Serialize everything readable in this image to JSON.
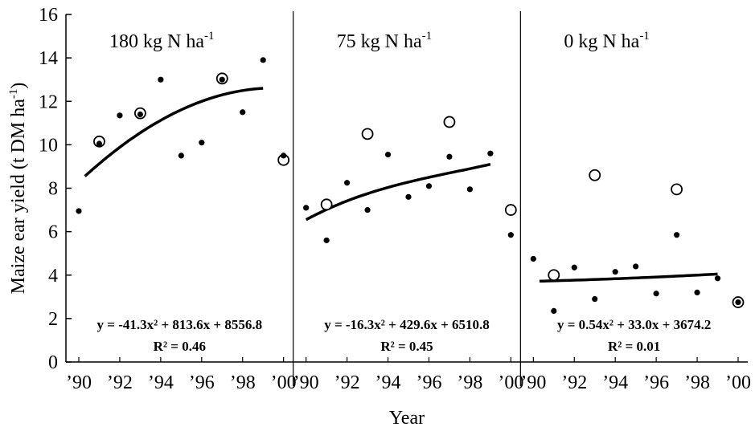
{
  "chart_data": {
    "type": "scatter",
    "ylabel": "Maize ear yield (t DM ha-1)",
    "xlabel": "Year",
    "ylim": [
      0,
      16
    ],
    "yticks": [
      "0",
      "2",
      "4",
      "6",
      "8",
      "10",
      "12",
      "14",
      "16"
    ],
    "xticks": [
      "’90",
      "’92",
      "’94",
      "’96",
      "’98",
      "’00"
    ],
    "xlim": [
      1990,
      2000
    ],
    "grid": false,
    "legend": "none",
    "marker_colors": {
      "filled": "#000000",
      "open_fill": "#ffffff"
    },
    "panels": [
      {
        "title_main": "180 kg N ha",
        "title_sup": "-1",
        "equation": "y = -41.3x² + 813.6x + 8556.8",
        "r2": "R² = 0.46",
        "filled": [
          [
            1990,
            6.95
          ],
          [
            1991,
            10.05
          ],
          [
            1992,
            11.35
          ],
          [
            1993,
            11.4
          ],
          [
            1994,
            13.0
          ],
          [
            1995,
            9.5
          ],
          [
            1996,
            10.1
          ],
          [
            1997,
            13.0
          ],
          [
            1998,
            11.5
          ],
          [
            1999,
            13.9
          ],
          [
            2000,
            9.5
          ]
        ],
        "open": [
          [
            1991,
            10.15
          ],
          [
            1993,
            11.45
          ],
          [
            1997,
            13.05
          ],
          [
            2000,
            9.3
          ]
        ],
        "fit": [
          [
            1990.3,
            8.55
          ],
          [
            1993,
            10.55
          ],
          [
            1996,
            12.0
          ],
          [
            1999,
            12.6
          ]
        ]
      },
      {
        "title_main": "75 kg N ha",
        "title_sup": "-1",
        "equation": "y = -16.3x² + 429.6x + 6510.8",
        "r2": "R² = 0.45",
        "filled": [
          [
            1990,
            7.1
          ],
          [
            1991,
            5.6
          ],
          [
            1992,
            8.25
          ],
          [
            1993,
            7.0
          ],
          [
            1994,
            9.55
          ],
          [
            1995,
            7.6
          ],
          [
            1996,
            8.1
          ],
          [
            1997,
            9.45
          ],
          [
            1998,
            7.95
          ],
          [
            1999,
            9.6
          ],
          [
            2000,
            5.85
          ]
        ],
        "open": [
          [
            1991,
            7.25
          ],
          [
            1993,
            10.5
          ],
          [
            1997,
            11.05
          ],
          [
            2000,
            7.0
          ]
        ],
        "fit": [
          [
            1990,
            6.55
          ],
          [
            1993,
            7.75
          ],
          [
            1996,
            8.5
          ],
          [
            1999,
            9.1
          ]
        ]
      },
      {
        "title_main": "0 kg N ha",
        "title_sup": "-1",
        "equation": "y = 0.54x² + 33.0x + 3674.2",
        "r2": "R² = 0.01",
        "filled": [
          [
            1990,
            4.75
          ],
          [
            1991,
            2.35
          ],
          [
            1992,
            4.35
          ],
          [
            1993,
            2.9
          ],
          [
            1994,
            4.15
          ],
          [
            1995,
            4.4
          ],
          [
            1996,
            3.15
          ],
          [
            1997,
            5.85
          ],
          [
            1998,
            3.2
          ],
          [
            1999,
            3.85
          ],
          [
            2000,
            2.75
          ]
        ],
        "open": [
          [
            1991,
            4.0
          ],
          [
            1993,
            8.6
          ],
          [
            1997,
            7.95
          ],
          [
            2000,
            2.75
          ]
        ],
        "fit": [
          [
            1990.3,
            3.72
          ],
          [
            1995,
            3.87
          ],
          [
            1999,
            4.05
          ]
        ]
      }
    ]
  }
}
